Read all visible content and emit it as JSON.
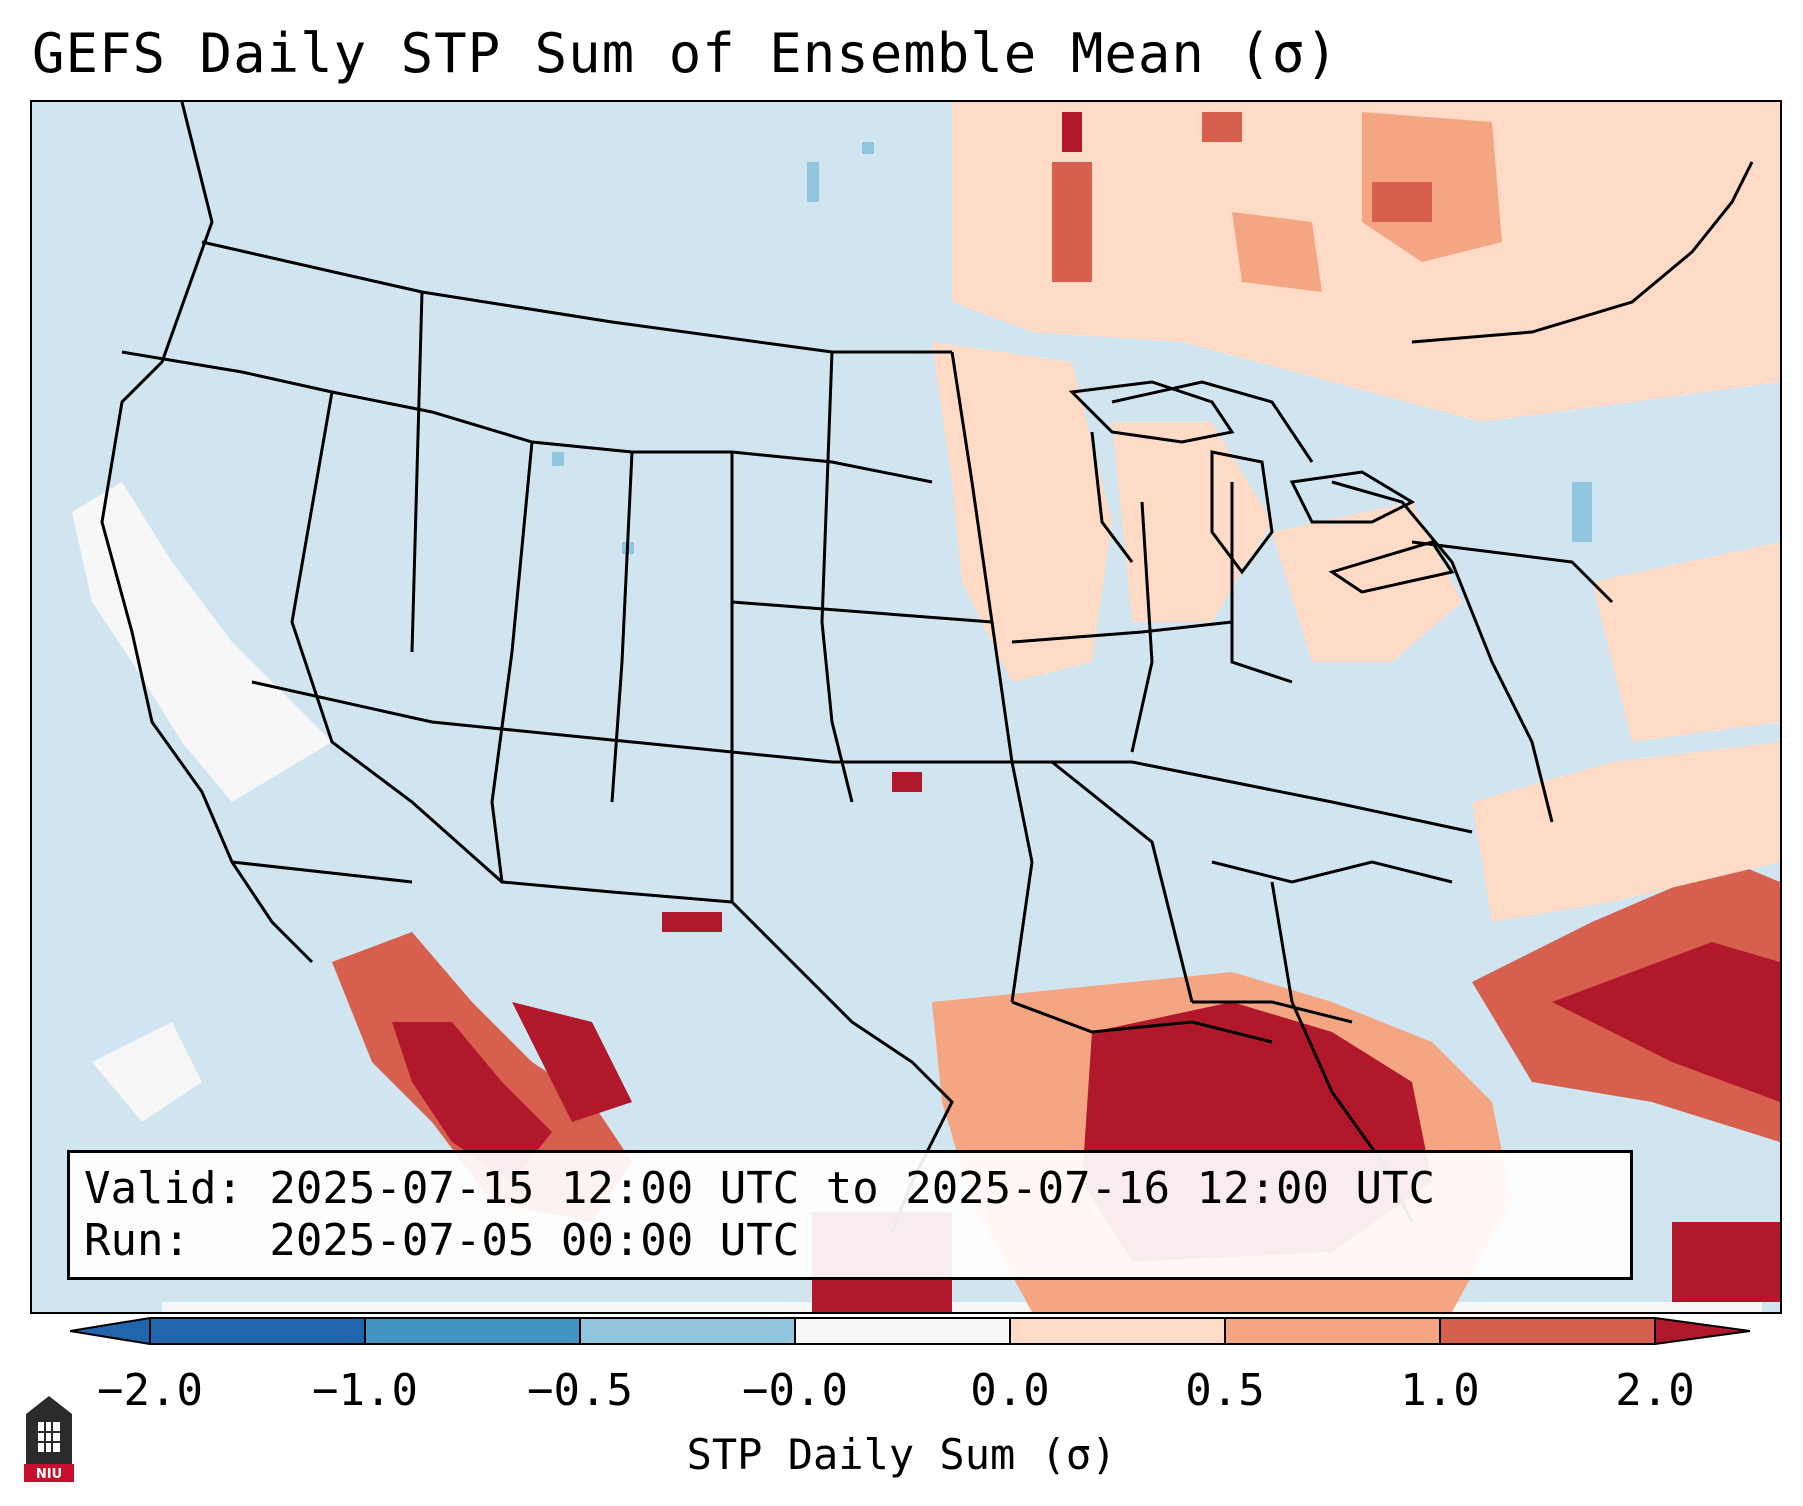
{
  "title": "GEFS Daily STP Sum of Ensemble Mean (σ)",
  "info": {
    "valid_line": "Valid: 2025-07-15 12:00 UTC to 2025-07-16 12:00 UTC",
    "run_line": "Run:   2025-07-05 00:00 UTC"
  },
  "colorbar": {
    "label": "STP Daily Sum (σ)",
    "ticks": [
      "−2.0",
      "−1.0",
      "−0.5",
      "−0.0",
      "0.0",
      "0.5",
      "1.0",
      "2.0"
    ],
    "colors": [
      "#2166ac",
      "#4393c3",
      "#92c5de",
      "#d1e5f0",
      "#f7f7f7",
      "#fddbc7",
      "#f4a582",
      "#d6604d",
      "#b2182b"
    ]
  },
  "logo": {
    "text": "NIU",
    "icon": "niu-logo-icon"
  },
  "map": {
    "projection": "lambert-conformal CONUS",
    "background_category": "-0.5 to 0.0",
    "region_hotspots": [
      "Gulf Coast / Florida",
      "Northwest Mexico",
      "Canada (Ontario/Quebec)",
      "Western Atlantic"
    ]
  }
}
